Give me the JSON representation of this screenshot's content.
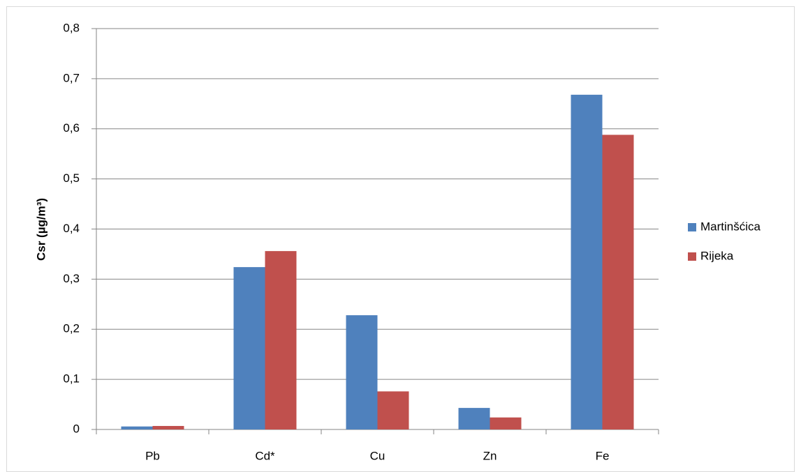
{
  "chart_data": {
    "type": "bar",
    "y_label": "Csr (µg/m³)",
    "categories": [
      "Pb",
      "Cd*",
      "Cu",
      "Zn",
      "Fe"
    ],
    "series": [
      {
        "name": "Martinšćica",
        "color": "#4f81bd",
        "values": [
          0.006,
          0.324,
          0.228,
          0.043,
          0.668
        ]
      },
      {
        "name": "Rijeka",
        "color": "#c0504d",
        "values": [
          0.007,
          0.356,
          0.076,
          0.024,
          0.588
        ]
      }
    ],
    "ylim": [
      0,
      0.8
    ],
    "yticks": [
      0,
      {
        "value": 0.1,
        "label": "0,1"
      },
      {
        "value": 0.2,
        "label": "0,2"
      },
      {
        "value": 0.3,
        "label": "0,3"
      },
      {
        "value": 0.4,
        "label": "0,4"
      },
      {
        "value": 0.5,
        "label": "0,5"
      },
      {
        "value": 0.6,
        "label": "0,6"
      },
      {
        "value": 0.7,
        "label": "0,7"
      },
      {
        "value": 0.8,
        "label": "0,8"
      }
    ],
    "grid": true,
    "legend": "right"
  }
}
